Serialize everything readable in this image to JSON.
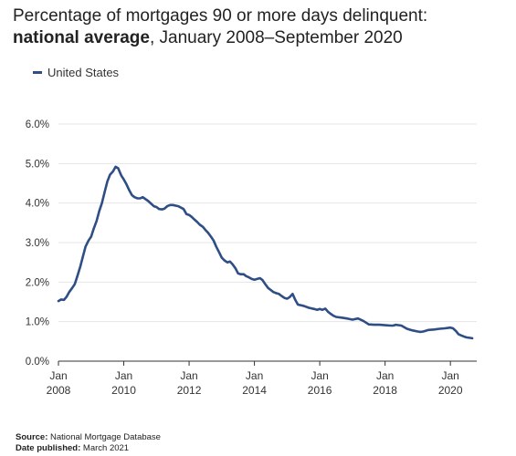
{
  "title": {
    "line1": "Percentage of mortgages 90 or more days delinquent:",
    "line2_bold": "national average",
    "line2_rest": ", January 2008–September 2020"
  },
  "legend": {
    "label": "United States"
  },
  "colors": {
    "series": "#2e4e85",
    "grid": "#e4e4e4",
    "axis": "#333333"
  },
  "source": {
    "source_label": "Source:",
    "source_value": " National Mortgage Database",
    "date_label": "Date published:",
    "date_value": " March 2021"
  },
  "chart_data": {
    "type": "line",
    "title": "Percentage of mortgages 90 or more days delinquent: national average, January 2008–September 2020",
    "xlabel": "",
    "ylabel": "",
    "xlim": [
      2008,
      2020.75
    ],
    "ylim": [
      0,
      6
    ],
    "yticks": [
      0,
      1,
      2,
      3,
      4,
      5,
      6
    ],
    "ytick_labels": [
      "0.0%",
      "1.0%",
      "2.0%",
      "3.0%",
      "4.0%",
      "5.0%",
      "6.0%"
    ],
    "xticks": [
      2008,
      2010,
      2012,
      2014,
      2016,
      2018,
      2020
    ],
    "xtick_labels_top": [
      "Jan",
      "Jan",
      "Jan",
      "Jan",
      "Jan",
      "Jan",
      "Jan"
    ],
    "xtick_labels_bottom": [
      "2008",
      "2010",
      "2012",
      "2014",
      "2016",
      "2018",
      "2020"
    ],
    "grid": true,
    "legend_position": "top-left",
    "series": [
      {
        "name": "United States",
        "x": [
          2008.0,
          2008.08,
          2008.17,
          2008.25,
          2008.33,
          2008.42,
          2008.5,
          2008.58,
          2008.67,
          2008.75,
          2008.83,
          2008.92,
          2009.0,
          2009.08,
          2009.17,
          2009.25,
          2009.33,
          2009.42,
          2009.5,
          2009.58,
          2009.67,
          2009.75,
          2009.83,
          2009.92,
          2010.0,
          2010.08,
          2010.17,
          2010.25,
          2010.33,
          2010.42,
          2010.5,
          2010.58,
          2010.75,
          2010.92,
          2011.0,
          2011.08,
          2011.17,
          2011.25,
          2011.33,
          2011.42,
          2011.5,
          2011.67,
          2011.83,
          2011.92,
          2012.0,
          2012.08,
          2012.17,
          2012.25,
          2012.33,
          2012.42,
          2012.5,
          2012.58,
          2012.67,
          2012.75,
          2012.83,
          2012.92,
          2013.0,
          2013.08,
          2013.17,
          2013.25,
          2013.33,
          2013.42,
          2013.5,
          2013.58,
          2013.67,
          2013.75,
          2013.83,
          2013.92,
          2014.0,
          2014.08,
          2014.17,
          2014.25,
          2014.33,
          2014.42,
          2014.5,
          2014.58,
          2014.67,
          2014.75,
          2014.83,
          2014.92,
          2015.0,
          2015.08,
          2015.17,
          2015.25,
          2015.33,
          2015.5,
          2015.67,
          2015.83,
          2015.92,
          2016.0,
          2016.08,
          2016.17,
          2016.25,
          2016.33,
          2016.42,
          2016.5,
          2016.67,
          2016.83,
          2017.0,
          2017.17,
          2017.33,
          2017.5,
          2017.67,
          2017.83,
          2018.0,
          2018.17,
          2018.25,
          2018.33,
          2018.5,
          2018.67,
          2018.83,
          2019.0,
          2019.08,
          2019.17,
          2019.25,
          2019.33,
          2019.5,
          2019.67,
          2019.83,
          2020.0,
          2020.08,
          2020.17,
          2020.25,
          2020.33,
          2020.42,
          2020.5,
          2020.58,
          2020.67
        ],
        "y": [
          1.52,
          1.56,
          1.55,
          1.63,
          1.75,
          1.85,
          1.95,
          2.15,
          2.4,
          2.65,
          2.9,
          3.05,
          3.15,
          3.35,
          3.55,
          3.8,
          4.0,
          4.3,
          4.55,
          4.72,
          4.8,
          4.92,
          4.88,
          4.7,
          4.6,
          4.48,
          4.32,
          4.2,
          4.15,
          4.12,
          4.12,
          4.15,
          4.05,
          3.92,
          3.9,
          3.85,
          3.84,
          3.86,
          3.92,
          3.95,
          3.95,
          3.92,
          3.85,
          3.72,
          3.7,
          3.65,
          3.58,
          3.52,
          3.45,
          3.4,
          3.32,
          3.25,
          3.15,
          3.05,
          2.9,
          2.75,
          2.62,
          2.55,
          2.5,
          2.52,
          2.45,
          2.35,
          2.22,
          2.2,
          2.2,
          2.15,
          2.12,
          2.08,
          2.06,
          2.08,
          2.1,
          2.05,
          1.95,
          1.85,
          1.8,
          1.75,
          1.72,
          1.7,
          1.65,
          1.6,
          1.58,
          1.62,
          1.7,
          1.55,
          1.43,
          1.4,
          1.35,
          1.32,
          1.3,
          1.32,
          1.3,
          1.33,
          1.25,
          1.2,
          1.15,
          1.12,
          1.1,
          1.08,
          1.05,
          1.08,
          1.02,
          0.93,
          0.92,
          0.92,
          0.91,
          0.9,
          0.9,
          0.92,
          0.9,
          0.82,
          0.78,
          0.75,
          0.74,
          0.75,
          0.77,
          0.79,
          0.8,
          0.82,
          0.83,
          0.85,
          0.83,
          0.76,
          0.68,
          0.65,
          0.62,
          0.6,
          0.59,
          0.58
        ]
      }
    ]
  }
}
